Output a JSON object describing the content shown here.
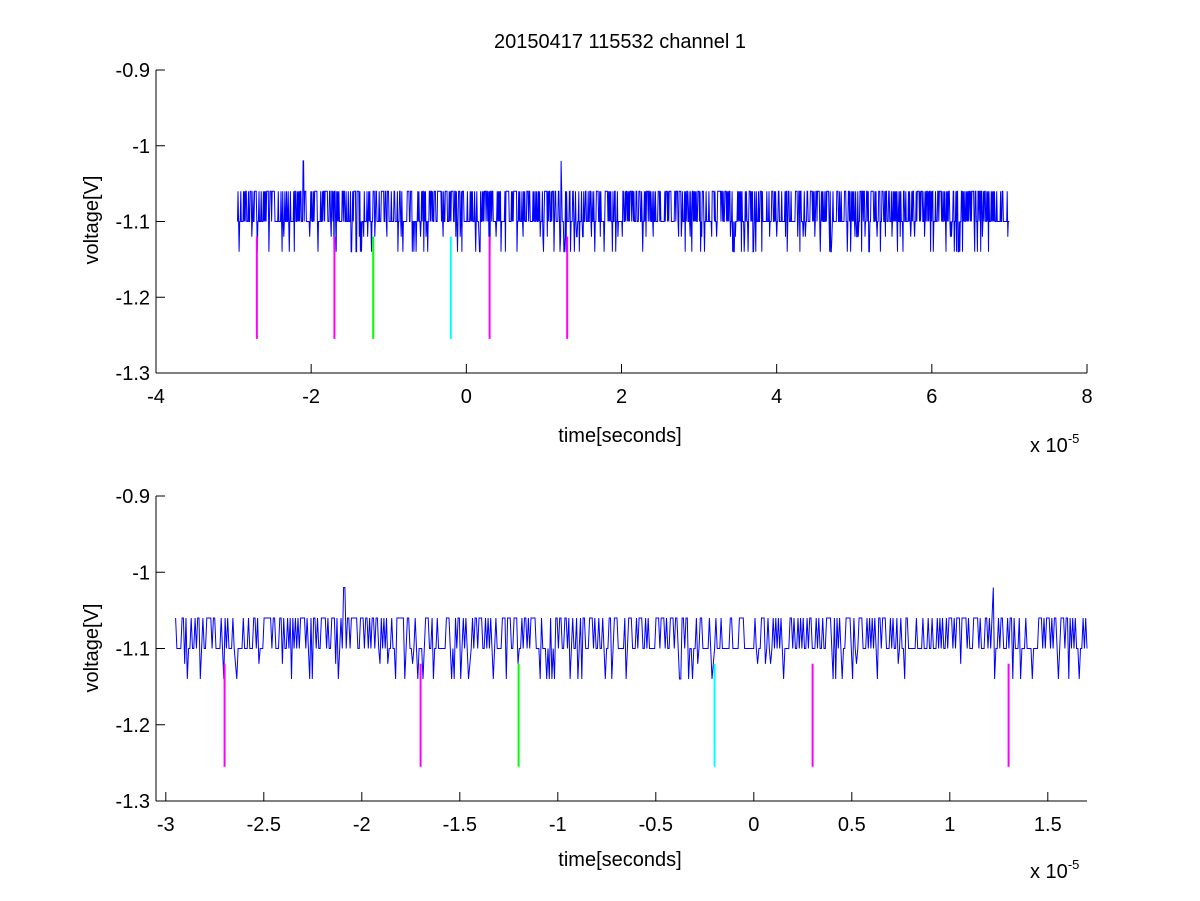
{
  "figure_title": "20150417 115532 channel 1",
  "colors": {
    "signal": "#0000ff",
    "marker_magenta": "#ff00ff",
    "marker_green": "#00ff00",
    "marker_cyan": "#00ffff",
    "axis": "#000000"
  },
  "chart_data": [
    {
      "type": "line",
      "title": "20150417 115532 channel 1",
      "xlabel": "time[seconds]",
      "ylabel": "voltage[V]",
      "x_exponent_label": "x 10",
      "x_exponent": "-5",
      "xlim": [
        -4,
        8
      ],
      "ylim": [
        -1.3,
        -0.9
      ],
      "x_ticks": [
        -4,
        -2,
        0,
        2,
        4,
        6,
        8
      ],
      "x_tick_labels": [
        "-4",
        "-2",
        "0",
        "2",
        "4",
        "6",
        "8"
      ],
      "y_ticks": [
        -0.9,
        -1.0,
        -1.1,
        -1.2,
        -1.3
      ],
      "y_tick_labels": [
        "-0.9",
        "-1",
        "-1.1",
        "-1.2",
        "-1.3"
      ],
      "grid": false,
      "series": [
        {
          "type": "noise_trace",
          "x_range": [
            -2.95,
            7.0
          ],
          "baseline": -1.1,
          "upper_level": -1.06,
          "lower_level": -1.14,
          "peaks": [
            {
              "x": -2.1,
              "y": -1.02
            },
            {
              "x": 1.22,
              "y": -1.02
            }
          ]
        }
      ],
      "markers": [
        {
          "x": -2.7,
          "y_top": -1.12,
          "y_bottom": -1.255,
          "color": "magenta"
        },
        {
          "x": -1.7,
          "y_top": -1.12,
          "y_bottom": -1.255,
          "color": "magenta"
        },
        {
          "x": -1.2,
          "y_top": -1.12,
          "y_bottom": -1.255,
          "color": "green"
        },
        {
          "x": -0.2,
          "y_top": -1.12,
          "y_bottom": -1.255,
          "color": "cyan"
        },
        {
          "x": 0.3,
          "y_top": -1.12,
          "y_bottom": -1.255,
          "color": "magenta"
        },
        {
          "x": 1.3,
          "y_top": -1.12,
          "y_bottom": -1.255,
          "color": "magenta"
        }
      ]
    },
    {
      "type": "line",
      "title": "",
      "xlabel": "time[seconds]",
      "ylabel": "voltage[V]",
      "x_exponent_label": "x 10",
      "x_exponent": "-5",
      "xlim": [
        -3.05,
        1.7
      ],
      "ylim": [
        -1.3,
        -0.9
      ],
      "x_ticks": [
        -3,
        -2.5,
        -2,
        -1.5,
        -1,
        -0.5,
        0,
        0.5,
        1,
        1.5
      ],
      "x_tick_labels": [
        "-3",
        "-2.5",
        "-2",
        "-1.5",
        "-1",
        "-0.5",
        "0",
        "0.5",
        "1",
        "1.5"
      ],
      "y_ticks": [
        -0.9,
        -1.0,
        -1.1,
        -1.2,
        -1.3
      ],
      "y_tick_labels": [
        "-0.9",
        "-1",
        "-1.1",
        "-1.2",
        "-1.3"
      ],
      "grid": false,
      "series": [
        {
          "type": "noise_trace",
          "x_range": [
            -2.95,
            1.7
          ],
          "baseline": -1.1,
          "upper_level": -1.06,
          "lower_level": -1.14,
          "peaks": [
            {
              "x": -2.09,
              "y": -1.02
            },
            {
              "x": 1.22,
              "y": -1.02
            }
          ]
        }
      ],
      "markers": [
        {
          "x": -2.7,
          "y_top": -1.12,
          "y_bottom": -1.255,
          "color": "magenta"
        },
        {
          "x": -1.7,
          "y_top": -1.12,
          "y_bottom": -1.255,
          "color": "magenta"
        },
        {
          "x": -1.2,
          "y_top": -1.12,
          "y_bottom": -1.255,
          "color": "green"
        },
        {
          "x": -0.2,
          "y_top": -1.12,
          "y_bottom": -1.255,
          "color": "cyan"
        },
        {
          "x": 0.3,
          "y_top": -1.12,
          "y_bottom": -1.255,
          "color": "magenta"
        },
        {
          "x": 1.3,
          "y_top": -1.12,
          "y_bottom": -1.255,
          "color": "magenta"
        }
      ]
    }
  ]
}
